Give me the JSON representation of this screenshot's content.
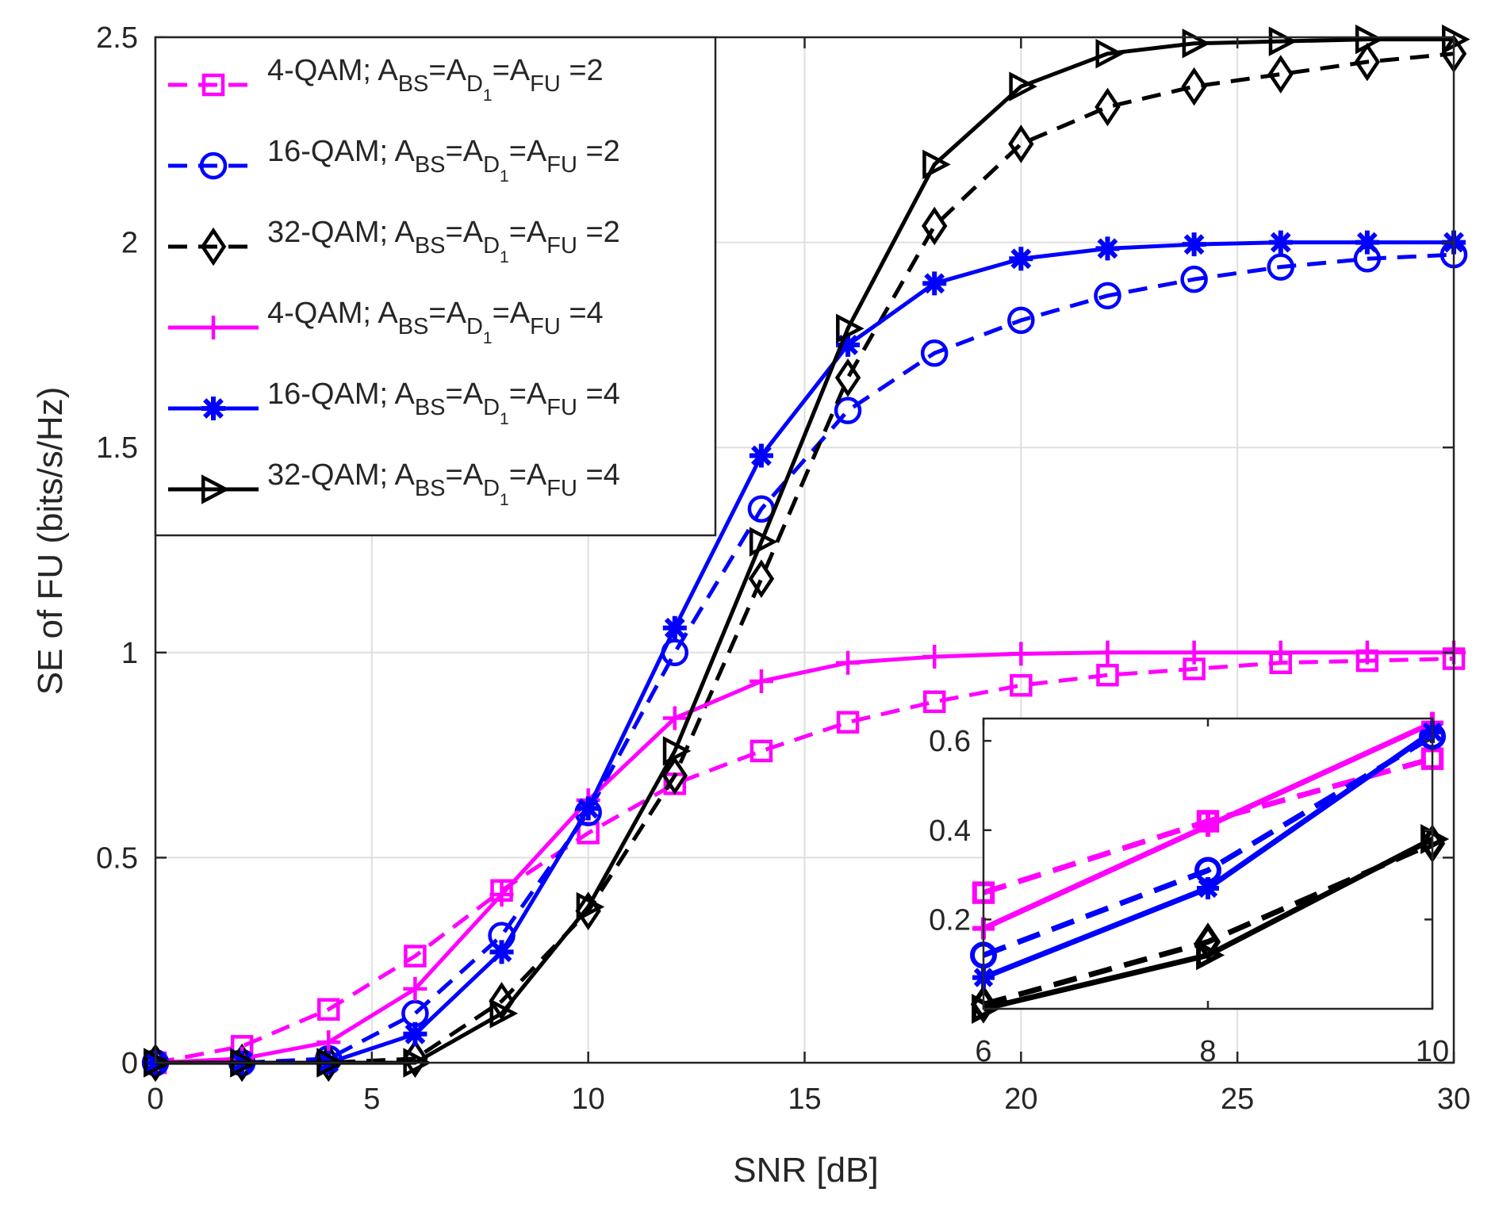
{
  "chart_data": {
    "type": "line",
    "xlabel": "SNR [dB]",
    "ylabel": "SE of FU (bits/s/Hz)",
    "xlim": [
      0,
      30
    ],
    "ylim": [
      0,
      2.5
    ],
    "xticks": [
      "0",
      "5",
      "10",
      "15",
      "20",
      "25",
      "30"
    ],
    "yticks": [
      "0",
      "0.5",
      "1",
      "1.5",
      "2",
      "2.5"
    ],
    "grid": true,
    "legend_position": "top-left",
    "series": [
      {
        "name": "4-QAM; A_BS=A_D1=A_FU=2",
        "legend": {
          "prefix": "4-QAM; A",
          "bs": "BS",
          "eq1": "=A",
          "d": "D",
          "one": "1",
          "eq2": "=A",
          "fu": "FU",
          "val": " =2"
        },
        "color": "#ff00ff",
        "dash": true,
        "marker": "square",
        "x": [
          0,
          2,
          4,
          6,
          8,
          10,
          12,
          14,
          16,
          18,
          20,
          22,
          24,
          26,
          28,
          30
        ],
        "values": [
          0.0,
          0.04,
          0.13,
          0.26,
          0.42,
          0.56,
          0.68,
          0.76,
          0.83,
          0.88,
          0.92,
          0.945,
          0.96,
          0.975,
          0.98,
          0.985
        ]
      },
      {
        "name": "16-QAM; A_BS=A_D1=A_FU=2",
        "legend": {
          "prefix": "16-QAM; A",
          "bs": "BS",
          "eq1": "=A",
          "d": "D",
          "one": "1",
          "eq2": "=A",
          "fu": "FU",
          "val": " =2"
        },
        "color": "#0000ff",
        "dash": true,
        "marker": "circle",
        "x": [
          0,
          2,
          4,
          6,
          8,
          10,
          12,
          14,
          16,
          18,
          20,
          22,
          24,
          26,
          28,
          30
        ],
        "values": [
          0.0,
          0.0,
          0.01,
          0.12,
          0.31,
          0.61,
          1.0,
          1.35,
          1.59,
          1.73,
          1.81,
          1.87,
          1.91,
          1.94,
          1.96,
          1.97
        ]
      },
      {
        "name": "32-QAM; A_BS=A_D1=A_FU=2",
        "legend": {
          "prefix": "32-QAM; A",
          "bs": "BS",
          "eq1": "=A",
          "d": "D",
          "one": "1",
          "eq2": "=A",
          "fu": "FU",
          "val": " =2"
        },
        "color": "#000000",
        "dash": true,
        "marker": "diamond",
        "x": [
          0,
          2,
          4,
          6,
          8,
          10,
          12,
          14,
          16,
          18,
          20,
          22,
          24,
          26,
          28,
          30
        ],
        "values": [
          0.0,
          0.0,
          0.0,
          0.01,
          0.15,
          0.37,
          0.7,
          1.18,
          1.67,
          2.04,
          2.24,
          2.33,
          2.38,
          2.41,
          2.44,
          2.46
        ]
      },
      {
        "name": "4-QAM; A_BS=A_D1=A_FU=4",
        "legend": {
          "prefix": "4-QAM; A",
          "bs": "BS",
          "eq1": "=A",
          "d": "D",
          "one": "1",
          "eq2": "=A",
          "fu": "FU",
          "val": " =4"
        },
        "color": "#ff00ff",
        "dash": false,
        "marker": "plus",
        "x": [
          0,
          2,
          4,
          6,
          8,
          10,
          12,
          14,
          16,
          18,
          20,
          22,
          24,
          26,
          28,
          30
        ],
        "values": [
          0.0,
          0.01,
          0.05,
          0.18,
          0.41,
          0.64,
          0.84,
          0.93,
          0.975,
          0.99,
          0.997,
          1.0,
          1.0,
          1.0,
          1.0,
          1.0
        ]
      },
      {
        "name": "16-QAM; A_BS=A_D1=A_FU=4",
        "legend": {
          "prefix": "16-QAM; A",
          "bs": "BS",
          "eq1": "=A",
          "d": "D",
          "one": "1",
          "eq2": "=A",
          "fu": "FU",
          "val": " =4"
        },
        "color": "#0000ff",
        "dash": false,
        "marker": "asterisk",
        "x": [
          0,
          2,
          4,
          6,
          8,
          10,
          12,
          14,
          16,
          18,
          20,
          22,
          24,
          26,
          28,
          30
        ],
        "values": [
          0.0,
          0.0,
          0.0,
          0.07,
          0.27,
          0.62,
          1.06,
          1.48,
          1.75,
          1.9,
          1.96,
          1.985,
          1.995,
          2.0,
          2.0,
          2.0
        ]
      },
      {
        "name": "32-QAM; A_BS=A_D1=A_FU=4",
        "legend": {
          "prefix": "32-QAM; A",
          "bs": "BS",
          "eq1": "=A",
          "d": "D",
          "one": "1",
          "eq2": "=A",
          "fu": "FU",
          "val": " =4"
        },
        "color": "#000000",
        "dash": false,
        "marker": "triangle-right",
        "x": [
          0,
          2,
          4,
          6,
          8,
          10,
          12,
          14,
          16,
          18,
          20,
          22,
          24,
          26,
          28,
          30
        ],
        "values": [
          0.0,
          0.0,
          0.0,
          0.0,
          0.12,
          0.38,
          0.76,
          1.27,
          1.79,
          2.19,
          2.38,
          2.46,
          2.485,
          2.49,
          2.495,
          2.495
        ]
      }
    ],
    "inset": {
      "xlim": [
        6,
        10
      ],
      "ylim": [
        0.0,
        0.65
      ],
      "xticks": [
        "6",
        "8",
        "10"
      ],
      "yticks": [
        "0.2",
        "0.4",
        "0.6"
      ],
      "x": [
        6,
        8,
        10
      ],
      "series_values": [
        [
          0.26,
          0.42,
          0.56
        ],
        [
          0.12,
          0.31,
          0.61
        ],
        [
          0.01,
          0.15,
          0.37
        ],
        [
          0.18,
          0.41,
          0.64
        ],
        [
          0.07,
          0.27,
          0.62
        ],
        [
          0.0,
          0.12,
          0.38
        ]
      ]
    }
  }
}
